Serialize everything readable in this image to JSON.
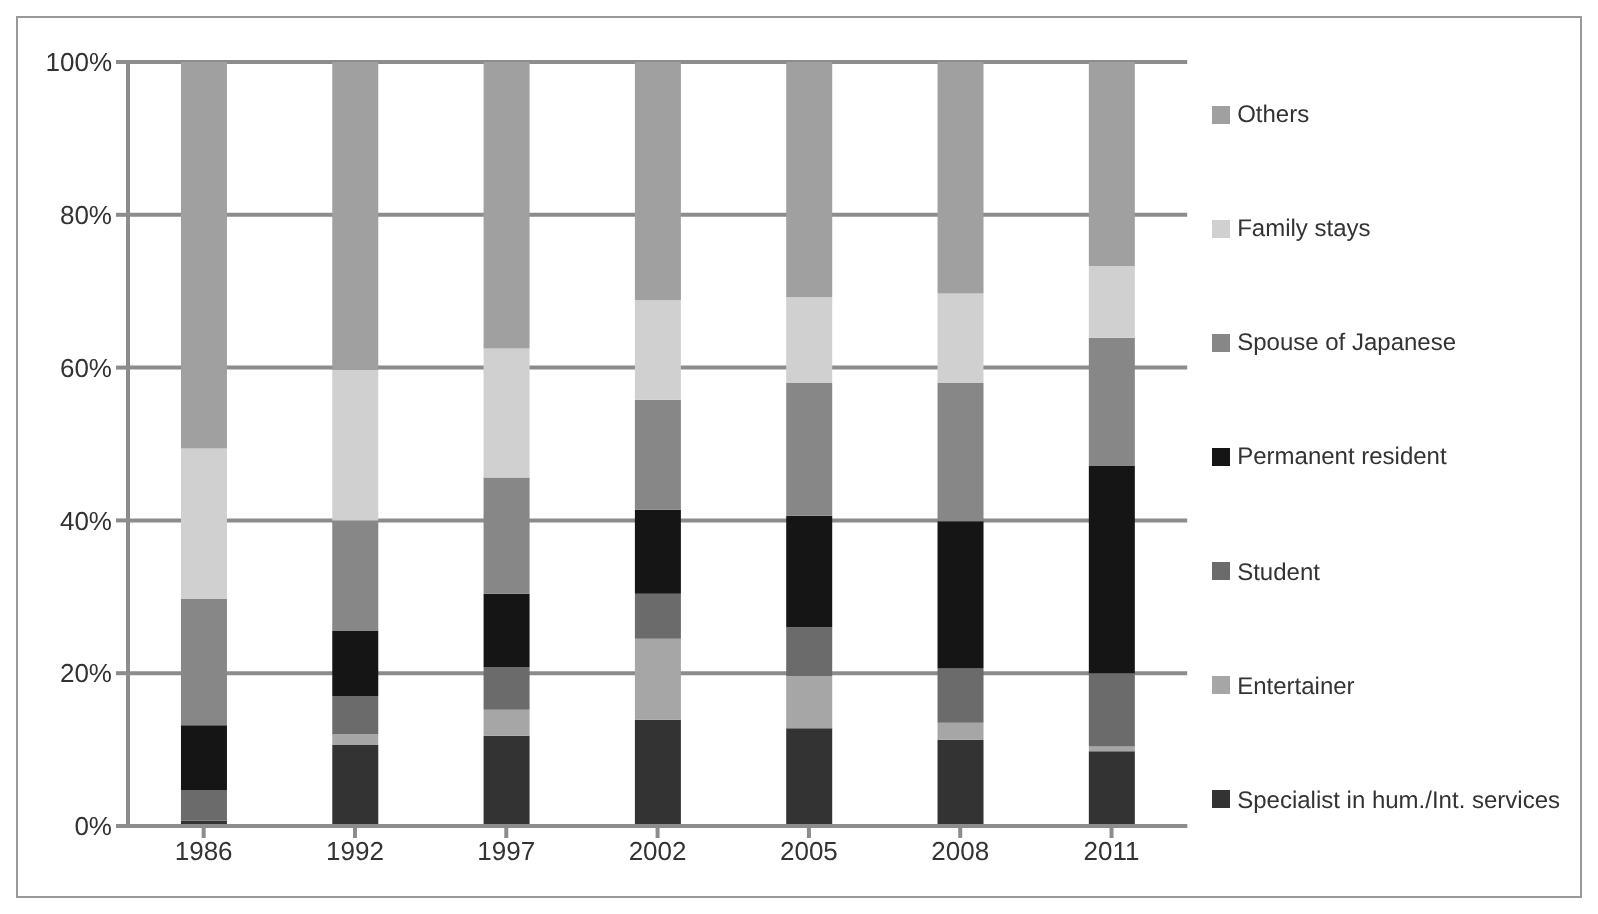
{
  "chart_data": {
    "type": "bar",
    "stacked": true,
    "categories": [
      "1986",
      "1992",
      "1997",
      "2002",
      "2005",
      "2008",
      "2011"
    ],
    "series": [
      {
        "name": "Specialist in hum./Int. services",
        "color": "#333333",
        "values": [
          0.7,
          10.6,
          11.8,
          13.9,
          12.8,
          11.3,
          9.8
        ]
      },
      {
        "name": "Entertainer",
        "color": "#a6a6a6",
        "values": [
          0,
          1.4,
          3.4,
          10.6,
          6.8,
          2.2,
          0.6
        ]
      },
      {
        "name": "Student",
        "color": "#6b6b6b",
        "values": [
          4.0,
          5.0,
          5.6,
          5.9,
          6.4,
          7.1,
          9.6
        ]
      },
      {
        "name": "Permanent resident",
        "color": "#151515",
        "values": [
          8.5,
          8.6,
          9.6,
          11.0,
          14.6,
          19.3,
          27.2
        ]
      },
      {
        "name": "Spouse of Japanese",
        "color": "#878787",
        "values": [
          16.5,
          14.4,
          15.2,
          14.4,
          17.4,
          18.1,
          16.7
        ]
      },
      {
        "name": "Family stays",
        "color": "#d0d0d0",
        "values": [
          19.7,
          19.7,
          16.9,
          13.0,
          11.2,
          11.7,
          9.4
        ]
      },
      {
        "name": "Others",
        "color": "#a0a0a0",
        "values": [
          50.6,
          40.3,
          37.5,
          31.2,
          30.8,
          30.3,
          26.7
        ]
      }
    ],
    "ylim": [
      0,
      100
    ],
    "yticks": [
      {
        "value": 0,
        "label": "0%"
      },
      {
        "value": 20,
        "label": "20%"
      },
      {
        "value": 40,
        "label": "40%"
      },
      {
        "value": 60,
        "label": "60%"
      },
      {
        "value": 80,
        "label": "80%"
      },
      {
        "value": 100,
        "label": "100%"
      }
    ],
    "grid": "y",
    "legend": "right"
  }
}
